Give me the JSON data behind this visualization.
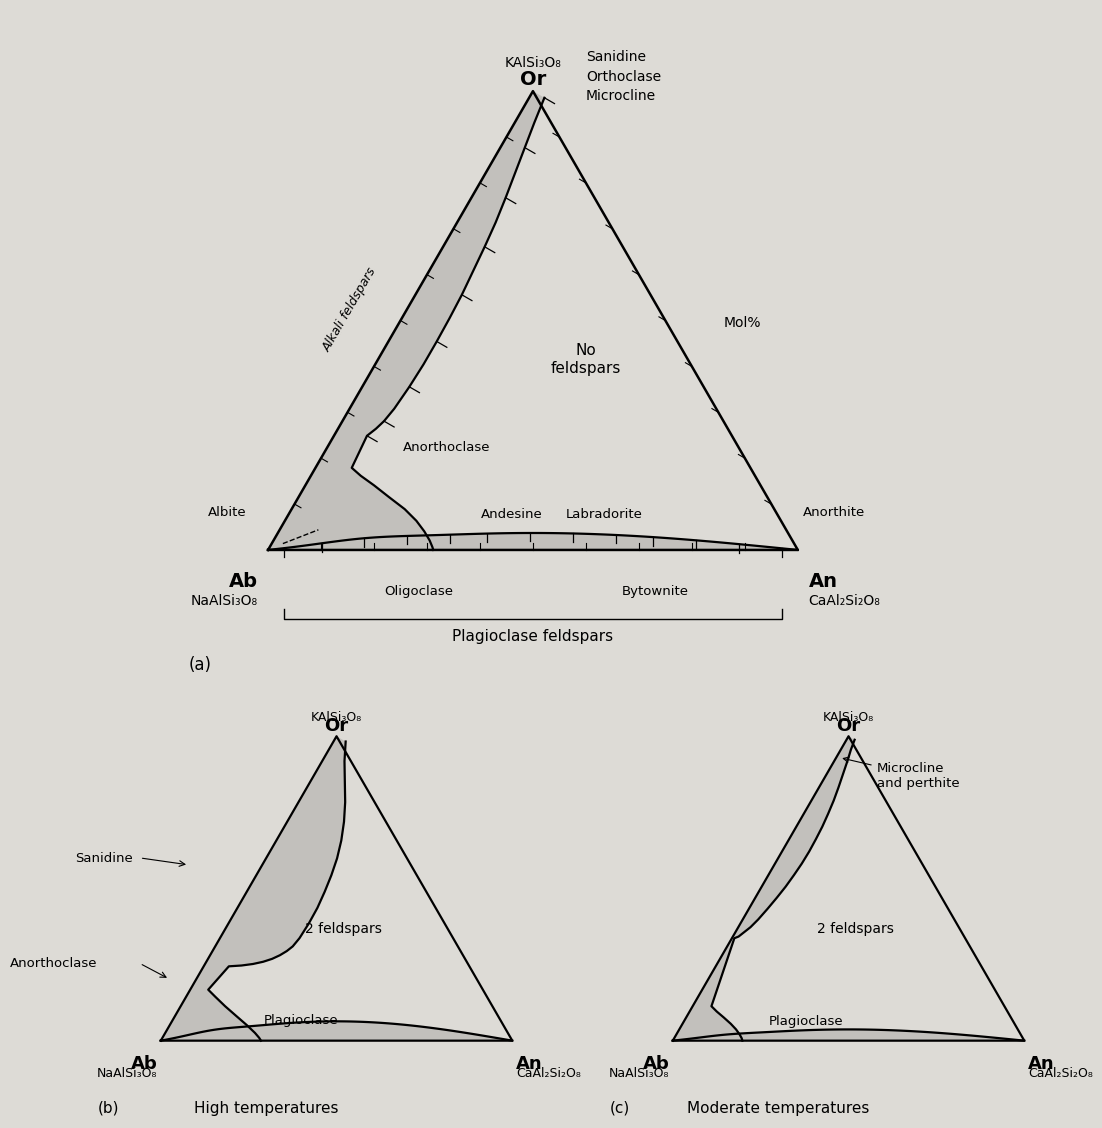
{
  "bg_color": "#e8e8e8",
  "page_bg": "#d8d4cc",
  "triangle_lw": 1.5,
  "shade_color": "#c8c8c8",
  "diagram_a": {
    "title_corner_or": "Or",
    "title_corner_ab": "Ab",
    "title_corner_an": "An",
    "formula_or": "KAlSi₃O₈",
    "formula_ab": "NaAlSi₃O₈",
    "formula_an": "CaAl₂Si₂O₈",
    "label_sanidine": "Sanidine",
    "label_orthoclase": "Orthoclase",
    "label_microcline": "Microcline",
    "label_mol": "Mol%",
    "label_alkali": "Alkali feldspars",
    "label_no_feldspars": "No\nfeldspars",
    "label_albite": "Albite",
    "label_anorthoclase": "Anorthoclase",
    "label_andesine": "Andesine",
    "label_labradorite": "Labradorite",
    "label_anorthite": "Anorthite",
    "label_oligoclase": "Oligoclase",
    "label_bytownite": "Bytownite",
    "label_plagioclase": "Plagioclase feldspars",
    "label_a": "(a)"
  },
  "diagram_b": {
    "title_corner_or": "Or",
    "title_corner_ab": "Ab",
    "title_corner_an": "An",
    "formula_or": "KAlSi₃O₈",
    "formula_ab": "NaAlSi₃O₈",
    "formula_an": "CaAl₂Si₂O₈",
    "label_sanidine": "Sanidine",
    "label_anorthoclase": "Anorthoclase",
    "label_2feldspars": "2 feldspars",
    "label_plagioclase": "Plagioclase",
    "label_high_temp": "High temperatures",
    "label_b": "(b)"
  },
  "diagram_c": {
    "title_corner_or": "Or",
    "title_corner_ab": "Ab",
    "title_corner_an": "An",
    "formula_or": "KAlSi₃O₈",
    "formula_ab": "NaAlSi₃O₈",
    "formula_an": "CaAl₂Si₂O₈",
    "label_microcline": "Microcline\nand perthite",
    "label_2feldspars": "2 feldspars",
    "label_plagioclase": "Plagioclase",
    "label_mod_temp": "Moderate temperatures",
    "label_c": "(c)"
  }
}
